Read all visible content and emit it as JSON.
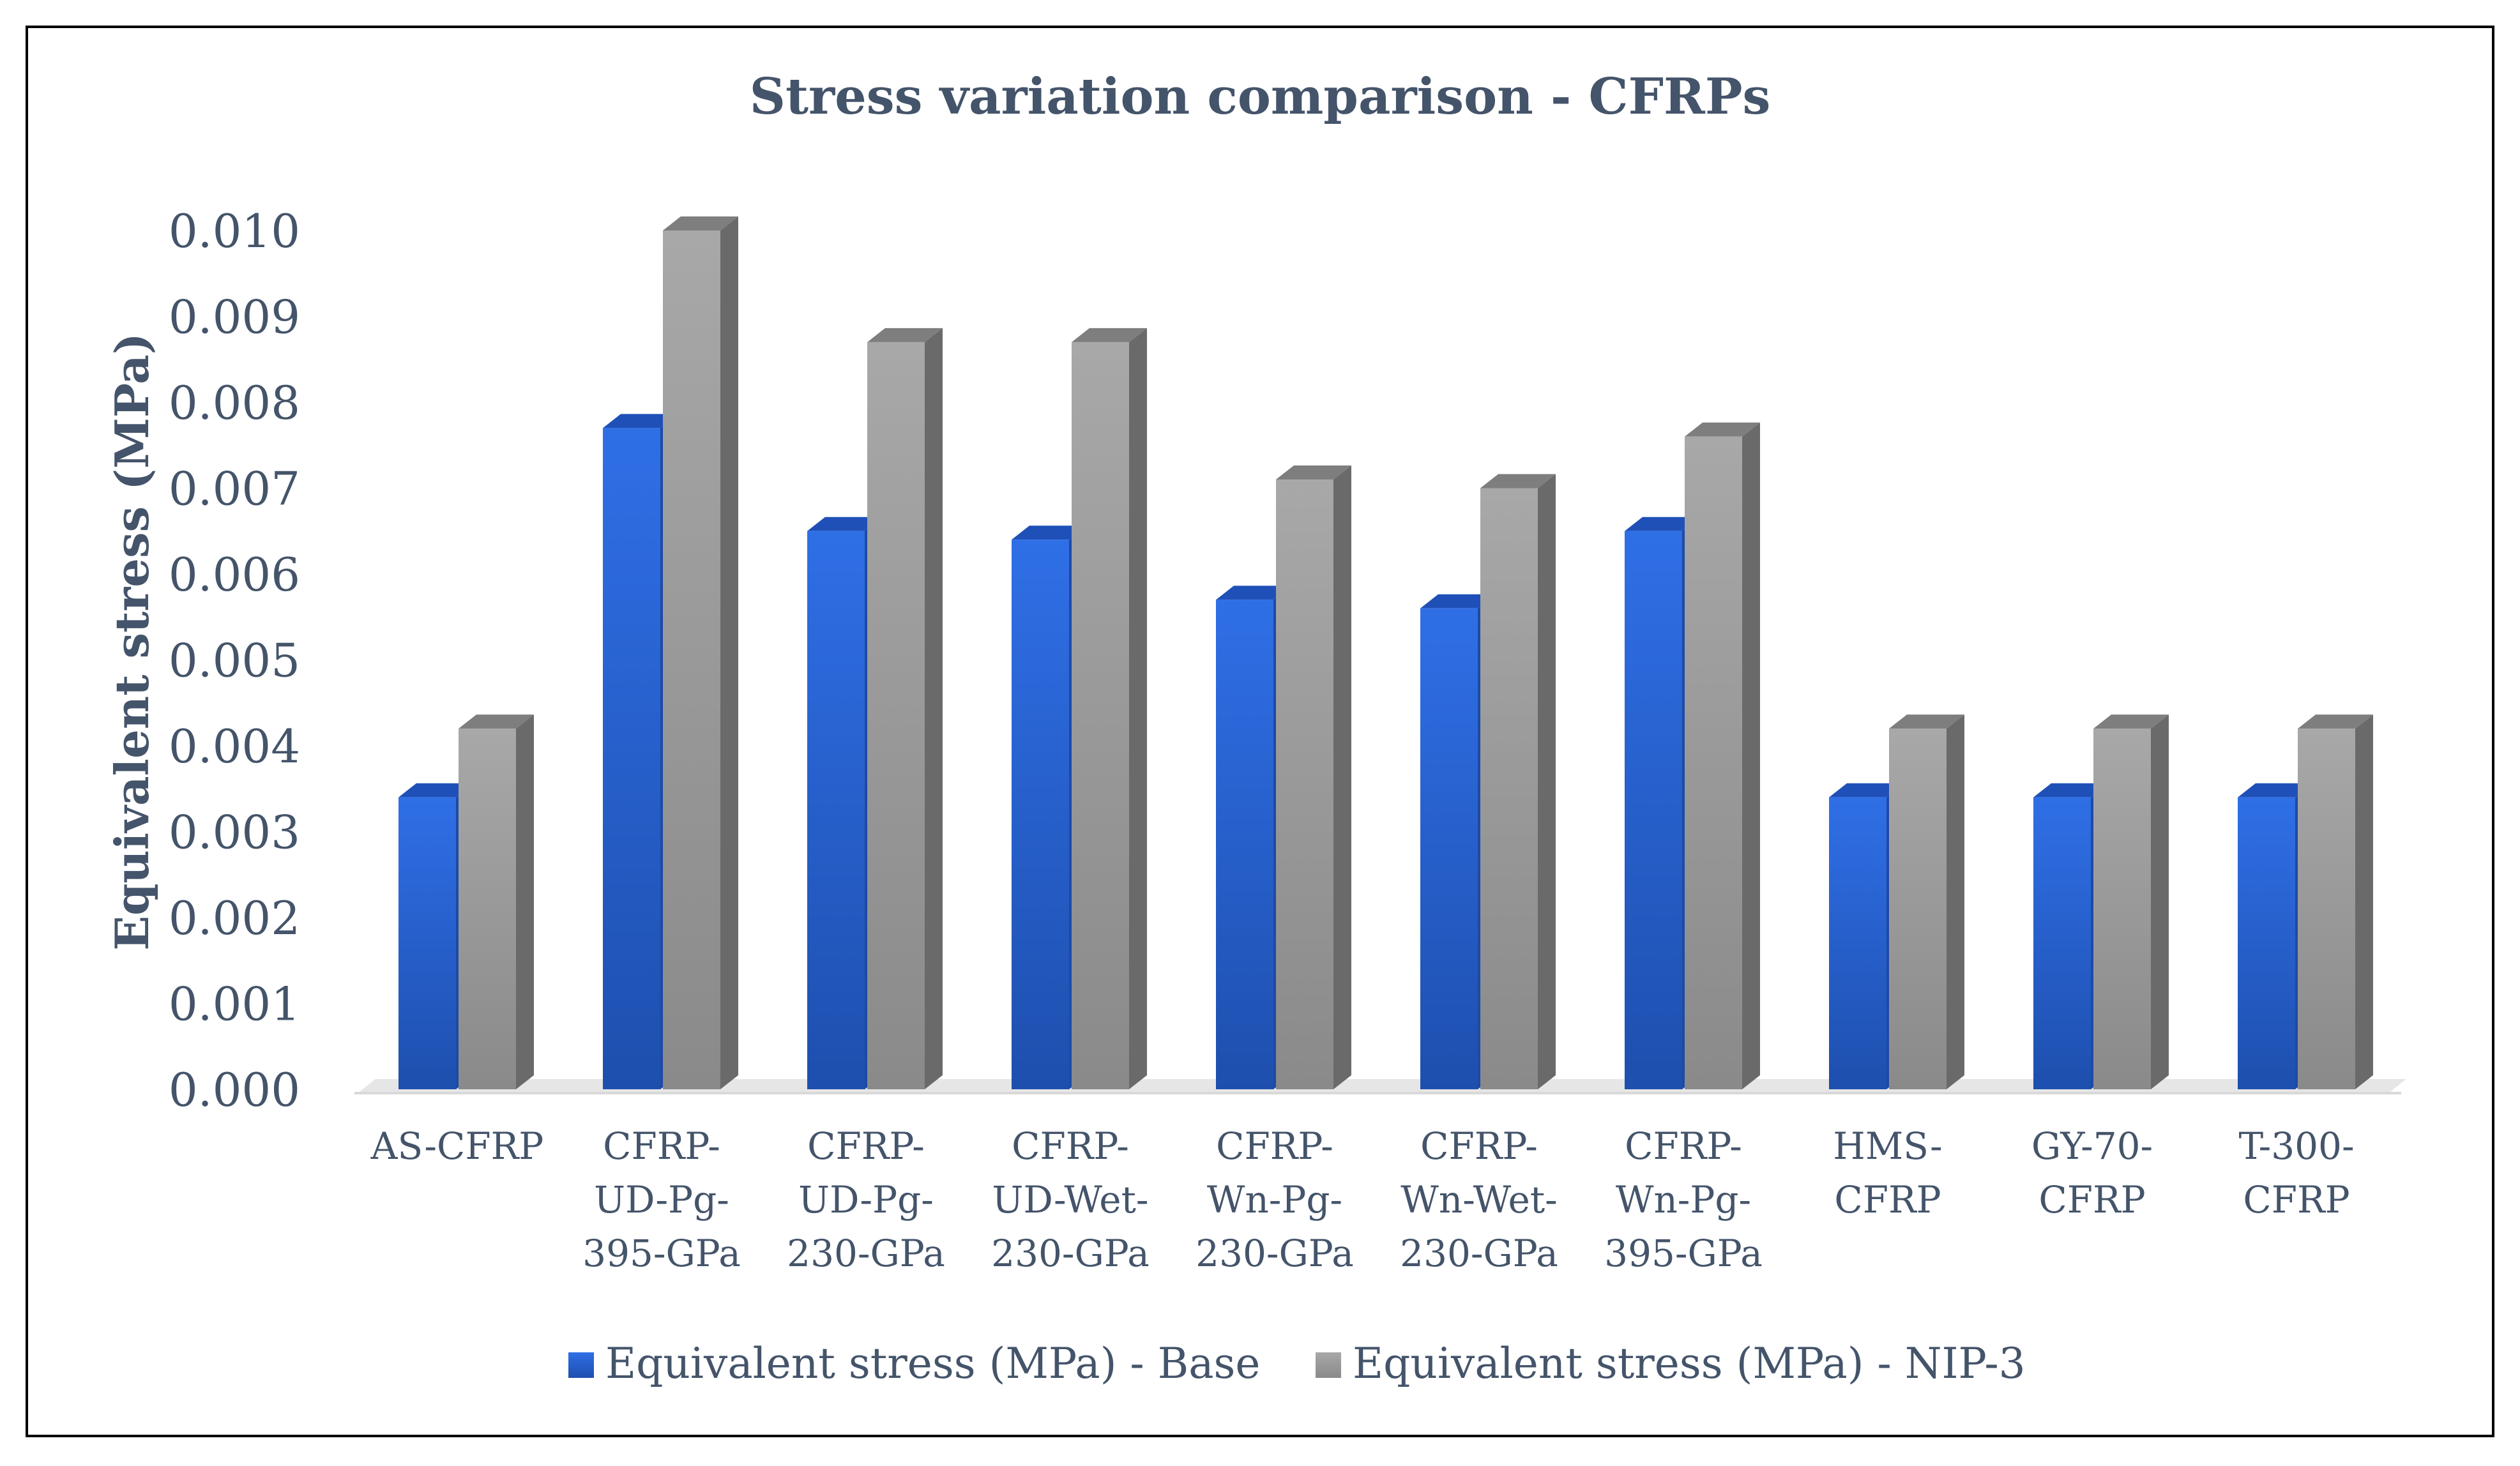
{
  "colors": {
    "base_front": "#2563d9",
    "base_side": "#1d4aa6",
    "base_top": "#1f50b8",
    "nip_front": "#9a9a9a",
    "nip_side": "#6a6a6a",
    "nip_top": "#7e7e7e",
    "text": "#44546a",
    "floor": "#e6e6e6"
  },
  "chart_data": {
    "type": "bar",
    "style": "3d-clustered-column",
    "title": "Stress variation comparison - CFRPs",
    "xlabel": "",
    "ylabel": "Equivalent stress (MPa)",
    "ylim": [
      0,
      0.01
    ],
    "yticks": [
      "0.000",
      "0.001",
      "0.002",
      "0.003",
      "0.004",
      "0.005",
      "0.006",
      "0.007",
      "0.008",
      "0.009",
      "0.010"
    ],
    "grid": false,
    "legend_position": "bottom",
    "categories": [
      [
        "AS-CFRP"
      ],
      [
        "CFRP-",
        "UD-Pg-",
        "395-GPa"
      ],
      [
        "CFRP-",
        "UD-Pg-",
        "230-GPa"
      ],
      [
        "CFRP-",
        "UD-Wet-",
        "230-GPa"
      ],
      [
        "CFRP-",
        "Wn-Pg-",
        "230-GPa"
      ],
      [
        "CFRP-",
        "Wn-Wet-",
        "230-GPa"
      ],
      [
        "CFRP-",
        "Wn-Pg-",
        "395-GPa"
      ],
      [
        "HMS-",
        "CFRP"
      ],
      [
        "GY-70-",
        "CFRP"
      ],
      [
        "T-300-",
        "CFRP"
      ]
    ],
    "series": [
      {
        "name": "Equivalent stress (MPa) - Base",
        "values": [
          0.0034,
          0.0077,
          0.0065,
          0.0064,
          0.0057,
          0.0056,
          0.0065,
          0.0034,
          0.0034,
          0.0034
        ]
      },
      {
        "name": "Equivalent stress (MPa) - NIP-3",
        "values": [
          0.0042,
          0.01,
          0.0087,
          0.0087,
          0.0071,
          0.007,
          0.0076,
          0.0042,
          0.0042,
          0.0042
        ]
      }
    ]
  }
}
